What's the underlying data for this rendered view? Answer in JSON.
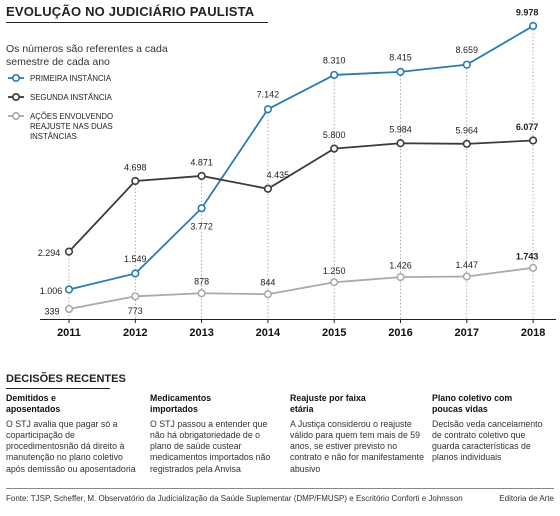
{
  "header": {
    "title": "EVOLUÇÃO NO JUDICIÁRIO PAULISTA",
    "subtitle": "Os números são referentes a cada semestre de cada ano"
  },
  "chart_data": {
    "type": "line",
    "x": [
      "2011",
      "2012",
      "2013",
      "2014",
      "2015",
      "2016",
      "2017",
      "2018"
    ],
    "series": [
      {
        "name": "PRIMEIRA INSTÂNCIA",
        "color": "#2a7bb5",
        "values": [
          1006,
          1549,
          3772,
          7142,
          8310,
          8415,
          8659,
          9978
        ],
        "labels": [
          "1.006",
          "1.549",
          "3.772",
          "7.142",
          "8.310",
          "8.415",
          "8.659",
          "9.978"
        ]
      },
      {
        "name": "SEGUNDA INSTÂNCIA",
        "color": "#3b3b3b",
        "values": [
          2294,
          4698,
          4871,
          4435,
          5800,
          5984,
          5964,
          6077
        ],
        "labels": [
          "2.294",
          "4.698",
          "4.871",
          "4.435",
          "5.800",
          "5.984",
          "5.964",
          "6.077"
        ]
      },
      {
        "name": "AÇÕES ENVOLVENDO REAJUSTE NAS DUAS INSTÂNCIAS",
        "color": "#aaaaaa",
        "values": [
          339,
          773,
          878,
          844,
          1250,
          1426,
          1447,
          1743
        ],
        "labels": [
          "339",
          "773",
          "878",
          "844",
          "1.250",
          "1.426",
          "1.447",
          "1.743"
        ]
      }
    ],
    "ylim": [
      0,
      10000
    ],
    "grid": "vertical dotted",
    "legend": "top-left"
  },
  "decisions": {
    "title": "DECISÕES RECENTES",
    "items": [
      {
        "title": "Demitidos e aposentados",
        "text": "O STJ avalia que pagar só a coparticipação de procedimentosnão dá direito à manutenção no plano coletivo após demissão ou aposentadoria"
      },
      {
        "title": "Medicamentos importados",
        "text": "O STJ passou a entender que não há obrigatoriedade de o plano de saúde custear medicamentos importados não registrados pela Anvisa"
      },
      {
        "title": "Reajuste por faixa etária",
        "text": "A Justiça considerou o reajuste válido para quem tem mais de 59 anos, se estiver previsto no contrato e não for manifestamente abusivo"
      },
      {
        "title": "Plano coletivo com poucas vidas",
        "text": "Decisão veda cancelamento de contrato coletivo que guarda características de planos individuais"
      }
    ]
  },
  "footer": {
    "source": "Fonte: TJSP, Scheffer, M. Observatório da Judicialização da Saúde Suplementar (DMP/FMUSP) e Escritório Conforti e Johnsson",
    "credit": "Editoria de Arte"
  }
}
